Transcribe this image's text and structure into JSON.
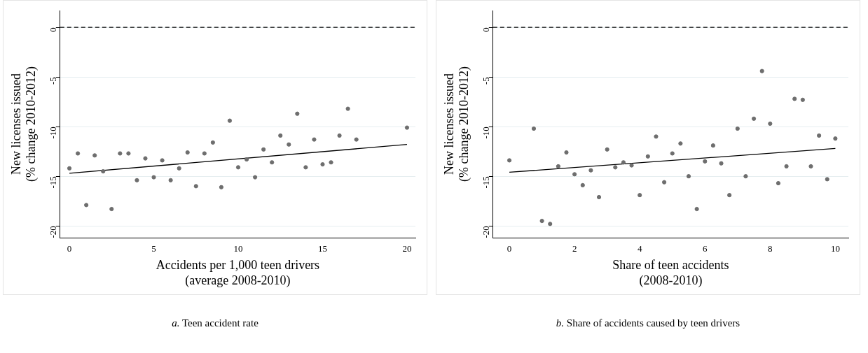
{
  "chart_data": [
    {
      "type": "scatter",
      "xlabel": "Accidents per 1,000 teen drivers\n(average 2008-2010)",
      "ylabel": "New licenses issued\n(% change 2010-2012)",
      "xlim": [
        -0.55,
        20.5
      ],
      "ylim": [
        -21.2,
        1.7
      ],
      "xticks": [
        0,
        5,
        10,
        15,
        20
      ],
      "yticks": [
        -20,
        -15,
        -10,
        -5,
        0
      ],
      "grid": "y",
      "legend": false,
      "marker": "circle",
      "series": [
        {
          "color": "#6e6e6e",
          "x": [
            0,
            0.5,
            1,
            1.5,
            2,
            2.5,
            3,
            3.5,
            4,
            4.5,
            5,
            5.5,
            6,
            6.5,
            7,
            7.5,
            8,
            8.5,
            9,
            9.5,
            10,
            10.5,
            11,
            11.5,
            12,
            12.5,
            13,
            13.5,
            14,
            14.5,
            15,
            15.5,
            16,
            16.5,
            17,
            20
          ],
          "values": [
            -14.2,
            -12.7,
            -17.9,
            -12.9,
            -14.5,
            -18.3,
            -12.7,
            -12.7,
            -15.4,
            -13.2,
            -15.1,
            -13.4,
            -15.4,
            -14.2,
            -12.6,
            -16.0,
            -12.7,
            -11.6,
            -16.1,
            -9.4,
            -14.1,
            -13.3,
            -15.1,
            -12.3,
            -13.6,
            -10.9,
            -11.8,
            -8.7,
            -14.1,
            -11.3,
            -13.8,
            -13.6,
            -10.9,
            -8.2,
            -11.3,
            -10.1
          ]
        },
        {
          "type": "line",
          "color": "#000000",
          "marker": "none",
          "x": [
            0,
            20
          ],
          "values": [
            -14.7,
            -11.8
          ]
        }
      ],
      "ref_lines": [
        {
          "axis": "y",
          "value": 0,
          "color": "#000000",
          "line_style": "dashed"
        }
      ],
      "annotations": [
        "a. Teen accident rate"
      ]
    },
    {
      "type": "scatter",
      "xlabel": "Share of teen accidents\n(2008-2010)",
      "ylabel": "New licenses issued\n(% change 2010-2012)",
      "xlim": [
        -0.5,
        10.4
      ],
      "ylim": [
        -21.2,
        1.7
      ],
      "xticks": [
        0,
        2,
        4,
        6,
        8,
        10
      ],
      "yticks": [
        -20,
        -15,
        -10,
        -5,
        0
      ],
      "grid": "y",
      "legend": false,
      "marker": "circle",
      "series": [
        {
          "color": "#6e6e6e",
          "x": [
            0,
            0.75,
            1,
            1.25,
            1.5,
            1.75,
            2,
            2.25,
            2.5,
            2.75,
            3,
            3.25,
            3.5,
            3.75,
            4,
            4.25,
            4.5,
            4.75,
            5,
            5.25,
            5.5,
            5.75,
            6,
            6.25,
            6.5,
            6.75,
            7,
            7.25,
            7.5,
            7.75,
            8,
            8.25,
            8.5,
            8.75,
            9,
            9.25,
            9.5,
            9.75,
            10
          ],
          "values": [
            -13.4,
            -10.2,
            -19.5,
            -19.8,
            -14.0,
            -12.6,
            -14.8,
            -15.9,
            -14.4,
            -17.1,
            -12.3,
            -14.1,
            -13.6,
            -13.9,
            -16.9,
            -13.0,
            -11.0,
            -15.6,
            -12.7,
            -11.7,
            -15.0,
            -18.3,
            -13.5,
            -11.9,
            -13.7,
            -16.9,
            -10.2,
            -15.0,
            -9.2,
            -4.4,
            -9.7,
            -15.7,
            -14.0,
            -7.2,
            -7.3,
            -14.0,
            -10.9,
            -15.3,
            -11.2
          ]
        },
        {
          "type": "line",
          "color": "#000000",
          "marker": "none",
          "x": [
            0,
            10
          ],
          "values": [
            -14.6,
            -12.2
          ]
        }
      ],
      "ref_lines": [
        {
          "axis": "y",
          "value": 0,
          "color": "#000000",
          "line_style": "dashed"
        }
      ],
      "annotations": [
        "b. Share of accidents caused by teen drivers"
      ]
    }
  ]
}
